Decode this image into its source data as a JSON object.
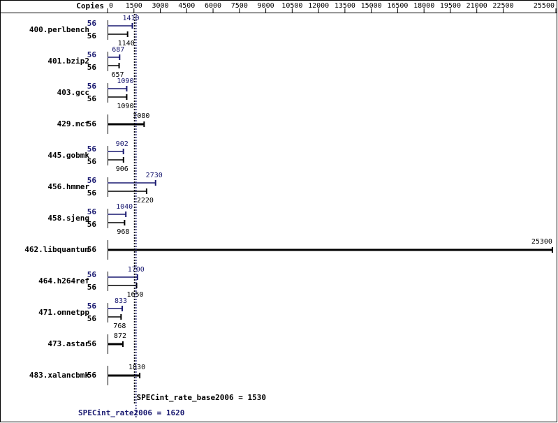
{
  "chart_data": {
    "type": "spec-bar",
    "copies_label": "Copies",
    "categories": [
      "400.perlbench",
      "401.bzip2",
      "403.gcc",
      "429.mcf",
      "445.gobmk",
      "456.hmmer",
      "458.sjeng",
      "462.libquantum",
      "464.h264ref",
      "471.omnetpp",
      "473.astar",
      "483.xalancbmk"
    ],
    "peak": {
      "color": "#191970",
      "copies": [
        56,
        56,
        56,
        null,
        56,
        56,
        56,
        null,
        56,
        56,
        null,
        null
      ],
      "values": [
        1410,
        687,
        1090,
        null,
        902,
        2730,
        1040,
        null,
        1700,
        833,
        null,
        null
      ]
    },
    "base": {
      "color": "#000000",
      "copies": [
        56,
        56,
        56,
        56,
        56,
        56,
        56,
        56,
        56,
        56,
        56,
        56
      ],
      "values": [
        1140,
        657,
        1090,
        2080,
        906,
        2220,
        968,
        25300,
        1650,
        768,
        872,
        1830
      ]
    },
    "xlim": [
      0,
      25500
    ],
    "xticks": [
      0,
      1500,
      3000,
      4500,
      6000,
      7500,
      9000,
      10500,
      12000,
      13500,
      15000,
      16500,
      18000,
      19500,
      21000,
      22500,
      25500
    ],
    "base_ref": {
      "value": 1530,
      "label": "SPECint_rate_base2006 = 1530"
    },
    "peak_ref": {
      "value": 1620,
      "label": "SPECint_rate2006 = 1620"
    }
  }
}
